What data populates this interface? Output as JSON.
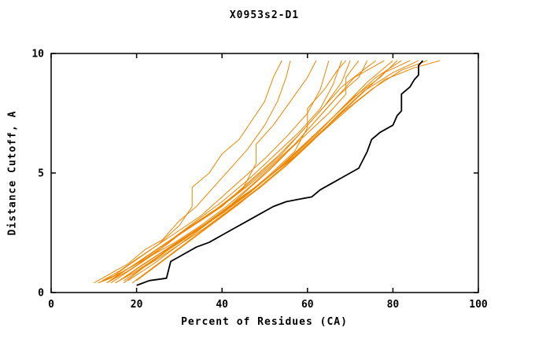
{
  "chart_data": {
    "type": "line",
    "title": "X0953s2-D1",
    "xlabel": "Percent of Residues (CA)",
    "ylabel": "Distance Cutoff, A",
    "xlim": [
      0,
      100
    ],
    "ylim": [
      0,
      10
    ],
    "xticks": [
      0,
      20,
      40,
      60,
      80,
      100
    ],
    "yticks": [
      0,
      5,
      10
    ],
    "grid": false,
    "legend": "none",
    "colors": {
      "background": "#ffffff",
      "frame": "#000000",
      "orange_series": "#ee8500",
      "black_series": "#000000"
    },
    "series": [
      {
        "name": "orange-01",
        "color": "#ee8500",
        "width": 1,
        "points": [
          [
            10,
            0.4
          ],
          [
            13,
            0.7
          ],
          [
            15,
            0.9
          ],
          [
            18,
            1.2
          ],
          [
            22,
            1.8
          ],
          [
            26,
            2.2
          ],
          [
            30,
            3.0
          ],
          [
            34,
            3.6
          ],
          [
            38,
            4.4
          ],
          [
            42,
            5.2
          ],
          [
            46,
            6.0
          ],
          [
            50,
            7.0
          ],
          [
            53,
            8.0
          ],
          [
            55,
            9.0
          ],
          [
            56,
            9.7
          ]
        ]
      },
      {
        "name": "orange-02",
        "color": "#ee8500",
        "width": 1,
        "points": [
          [
            11,
            0.4
          ],
          [
            14,
            0.6
          ],
          [
            17,
            1.0
          ],
          [
            21,
            1.5
          ],
          [
            25,
            2.0
          ],
          [
            30,
            2.6
          ],
          [
            35,
            3.2
          ],
          [
            40,
            4.0
          ],
          [
            45,
            4.8
          ],
          [
            50,
            5.6
          ],
          [
            55,
            6.5
          ],
          [
            60,
            7.5
          ],
          [
            63,
            8.5
          ],
          [
            65,
            9.7
          ]
        ]
      },
      {
        "name": "orange-03",
        "color": "#ee8500",
        "width": 1,
        "points": [
          [
            12,
            0.5
          ],
          [
            16,
            0.8
          ],
          [
            20,
            1.2
          ],
          [
            24,
            1.7
          ],
          [
            29,
            2.3
          ],
          [
            34,
            2.9
          ],
          [
            39,
            3.5
          ],
          [
            44,
            4.2
          ],
          [
            49,
            5.0
          ],
          [
            54,
            5.8
          ],
          [
            59,
            6.8
          ],
          [
            64,
            7.8
          ],
          [
            68,
            8.8
          ],
          [
            70,
            9.7
          ]
        ]
      },
      {
        "name": "orange-04",
        "color": "#ee8500",
        "width": 1,
        "points": [
          [
            13,
            0.4
          ],
          [
            17,
            0.9
          ],
          [
            22,
            1.4
          ],
          [
            27,
            2.0
          ],
          [
            32,
            2.7
          ],
          [
            37,
            3.3
          ],
          [
            42,
            3.9
          ],
          [
            47,
            4.6
          ],
          [
            52,
            5.4
          ],
          [
            57,
            6.2
          ],
          [
            62,
            7.2
          ],
          [
            67,
            8.2
          ],
          [
            72,
            9.0
          ],
          [
            74,
            9.7
          ]
        ]
      },
      {
        "name": "orange-05",
        "color": "#ee8500",
        "width": 1,
        "points": [
          [
            14,
            0.5
          ],
          [
            18,
            1.0
          ],
          [
            23,
            1.6
          ],
          [
            28,
            2.2
          ],
          [
            33,
            2.8
          ],
          [
            38,
            3.4
          ],
          [
            43,
            4.1
          ],
          [
            48,
            4.9
          ],
          [
            53,
            5.7
          ],
          [
            58,
            6.6
          ],
          [
            63,
            7.6
          ],
          [
            68,
            8.6
          ],
          [
            73,
            9.3
          ],
          [
            76,
            9.7
          ]
        ]
      },
      {
        "name": "orange-06",
        "color": "#ee8500",
        "width": 1,
        "points": [
          [
            15,
            0.4
          ],
          [
            19,
            0.8
          ],
          [
            24,
            1.3
          ],
          [
            30,
            2.0
          ],
          [
            36,
            2.8
          ],
          [
            41,
            3.5
          ],
          [
            46,
            4.3
          ],
          [
            51,
            5.1
          ],
          [
            56,
            6.0
          ],
          [
            61,
            7.0
          ],
          [
            66,
            8.0
          ],
          [
            71,
            9.0
          ],
          [
            78,
            9.7
          ]
        ]
      },
      {
        "name": "orange-07",
        "color": "#ee8500",
        "width": 1,
        "points": [
          [
            16,
            0.5
          ],
          [
            20,
            1.0
          ],
          [
            26,
            1.7
          ],
          [
            32,
            2.4
          ],
          [
            38,
            3.1
          ],
          [
            44,
            3.9
          ],
          [
            50,
            4.7
          ],
          [
            56,
            5.6
          ],
          [
            62,
            6.6
          ],
          [
            68,
            7.7
          ],
          [
            74,
            8.8
          ],
          [
            80,
            9.7
          ]
        ]
      },
      {
        "name": "orange-08",
        "color": "#ee8500",
        "width": 1,
        "points": [
          [
            17,
            0.4
          ],
          [
            22,
            1.1
          ],
          [
            28,
            1.9
          ],
          [
            34,
            2.6
          ],
          [
            40,
            3.3
          ],
          [
            46,
            4.1
          ],
          [
            52,
            5.0
          ],
          [
            58,
            6.0
          ],
          [
            64,
            7.0
          ],
          [
            70,
            8.0
          ],
          [
            76,
            9.0
          ],
          [
            82,
            9.7
          ]
        ]
      },
      {
        "name": "orange-09",
        "color": "#ee8500",
        "width": 1,
        "points": [
          [
            18,
            0.5
          ],
          [
            24,
            1.2
          ],
          [
            30,
            2.0
          ],
          [
            36,
            2.7
          ],
          [
            42,
            3.5
          ],
          [
            48,
            4.3
          ],
          [
            54,
            5.2
          ],
          [
            60,
            6.2
          ],
          [
            66,
            7.2
          ],
          [
            72,
            8.2
          ],
          [
            78,
            9.2
          ],
          [
            84,
            9.7
          ]
        ]
      },
      {
        "name": "orange-10",
        "color": "#ee8500",
        "width": 1,
        "points": [
          [
            19,
            0.4
          ],
          [
            25,
            1.2
          ],
          [
            31,
            2.0
          ],
          [
            37,
            2.8
          ],
          [
            43,
            3.6
          ],
          [
            49,
            4.4
          ],
          [
            55,
            5.3
          ],
          [
            61,
            6.3
          ],
          [
            67,
            7.4
          ],
          [
            73,
            8.4
          ],
          [
            80,
            9.2
          ],
          [
            86,
            9.7
          ]
        ]
      },
      {
        "name": "orange-11",
        "color": "#ee8500",
        "width": 1,
        "points": [
          [
            20,
            0.5
          ],
          [
            26,
            1.3
          ],
          [
            32,
            2.1
          ],
          [
            38,
            2.9
          ],
          [
            44,
            3.7
          ],
          [
            50,
            4.6
          ],
          [
            56,
            5.5
          ],
          [
            62,
            6.5
          ],
          [
            68,
            7.5
          ],
          [
            75,
            8.5
          ],
          [
            82,
            9.3
          ],
          [
            88,
            9.7
          ]
        ]
      },
      {
        "name": "orange-12",
        "color": "#ee8500",
        "width": 1,
        "points": [
          [
            15,
            0.4
          ],
          [
            20,
            0.9
          ],
          [
            25,
            1.5
          ],
          [
            31,
            2.2
          ],
          [
            37,
            3.0
          ],
          [
            43,
            3.8
          ],
          [
            50,
            4.7
          ],
          [
            57,
            5.7
          ],
          [
            64,
            6.8
          ],
          [
            71,
            7.9
          ],
          [
            78,
            8.9
          ],
          [
            85,
            9.4
          ],
          [
            91,
            9.7
          ]
        ]
      },
      {
        "name": "orange-13",
        "color": "#ee8500",
        "width": 1,
        "points": [
          [
            12,
            0.5
          ],
          [
            16,
            0.9
          ],
          [
            20,
            1.4
          ],
          [
            25,
            2.0
          ],
          [
            30,
            2.8
          ],
          [
            33,
            3.6
          ],
          [
            33,
            4.4
          ],
          [
            37,
            5.0
          ],
          [
            40,
            5.8
          ],
          [
            44,
            6.4
          ],
          [
            47,
            7.2
          ],
          [
            50,
            8.0
          ],
          [
            52,
            9.0
          ],
          [
            54,
            9.7
          ]
        ]
      },
      {
        "name": "orange-14",
        "color": "#ee8500",
        "width": 1,
        "points": [
          [
            14,
            0.4
          ],
          [
            19,
            1.0
          ],
          [
            24,
            1.6
          ],
          [
            29,
            2.3
          ],
          [
            35,
            3.0
          ],
          [
            40,
            3.6
          ],
          [
            45,
            4.4
          ],
          [
            48,
            5.4
          ],
          [
            48,
            6.2
          ],
          [
            52,
            7.0
          ],
          [
            56,
            8.0
          ],
          [
            60,
            9.0
          ],
          [
            62,
            9.7
          ]
        ]
      },
      {
        "name": "orange-15",
        "color": "#ee8500",
        "width": 1,
        "points": [
          [
            16,
            0.5
          ],
          [
            21,
            1.1
          ],
          [
            27,
            1.8
          ],
          [
            33,
            2.5
          ],
          [
            39,
            3.2
          ],
          [
            45,
            4.0
          ],
          [
            51,
            4.9
          ],
          [
            57,
            5.9
          ],
          [
            60,
            6.9
          ],
          [
            60,
            7.7
          ],
          [
            64,
            8.5
          ],
          [
            67,
            9.3
          ],
          [
            69,
            9.7
          ]
        ]
      },
      {
        "name": "orange-16",
        "color": "#ee8500",
        "width": 1,
        "points": [
          [
            13,
            0.4
          ],
          [
            18,
            0.9
          ],
          [
            23,
            1.5
          ],
          [
            29,
            2.1
          ],
          [
            35,
            2.8
          ],
          [
            41,
            3.6
          ],
          [
            47,
            4.5
          ],
          [
            53,
            5.5
          ],
          [
            59,
            6.5
          ],
          [
            65,
            7.5
          ],
          [
            69,
            8.3
          ],
          [
            69,
            9.0
          ],
          [
            72,
            9.7
          ]
        ]
      },
      {
        "name": "orange-17",
        "color": "#ee8500",
        "width": 1,
        "points": [
          [
            11,
            0.4
          ],
          [
            15,
            0.7
          ],
          [
            19,
            1.1
          ],
          [
            23,
            1.6
          ],
          [
            28,
            2.2
          ],
          [
            34,
            3.0
          ],
          [
            40,
            3.8
          ],
          [
            46,
            4.7
          ],
          [
            52,
            5.7
          ],
          [
            58,
            6.7
          ],
          [
            63,
            7.7
          ],
          [
            66,
            8.7
          ],
          [
            68,
            9.7
          ]
        ]
      },
      {
        "name": "orange-18",
        "color": "#ee8500",
        "width": 1,
        "points": [
          [
            17,
            0.5
          ],
          [
            23,
            1.2
          ],
          [
            29,
            2.0
          ],
          [
            36,
            2.8
          ],
          [
            43,
            3.7
          ],
          [
            50,
            4.7
          ],
          [
            57,
            5.8
          ],
          [
            64,
            7.0
          ],
          [
            71,
            8.2
          ],
          [
            77,
            9.0
          ],
          [
            81,
            9.7
          ]
        ]
      },
      {
        "name": "black",
        "color": "#000000",
        "width": 1.8,
        "points": [
          [
            20,
            0.3
          ],
          [
            23,
            0.5
          ],
          [
            27,
            0.6
          ],
          [
            28,
            1.3
          ],
          [
            31,
            1.6
          ],
          [
            34,
            1.9
          ],
          [
            37,
            2.1
          ],
          [
            40,
            2.4
          ],
          [
            43,
            2.7
          ],
          [
            46,
            3.0
          ],
          [
            49,
            3.3
          ],
          [
            52,
            3.6
          ],
          [
            55,
            3.8
          ],
          [
            58,
            3.9
          ],
          [
            61,
            4.0
          ],
          [
            63,
            4.3
          ],
          [
            66,
            4.6
          ],
          [
            68,
            4.8
          ],
          [
            70,
            5.0
          ],
          [
            72,
            5.2
          ],
          [
            74,
            5.9
          ],
          [
            75,
            6.4
          ],
          [
            77,
            6.7
          ],
          [
            79,
            6.9
          ],
          [
            80,
            7.0
          ],
          [
            81,
            7.4
          ],
          [
            82,
            7.6
          ],
          [
            82,
            8.3
          ],
          [
            84,
            8.6
          ],
          [
            85,
            8.9
          ],
          [
            86,
            9.1
          ],
          [
            86,
            9.5
          ],
          [
            87,
            9.7
          ]
        ]
      }
    ]
  }
}
